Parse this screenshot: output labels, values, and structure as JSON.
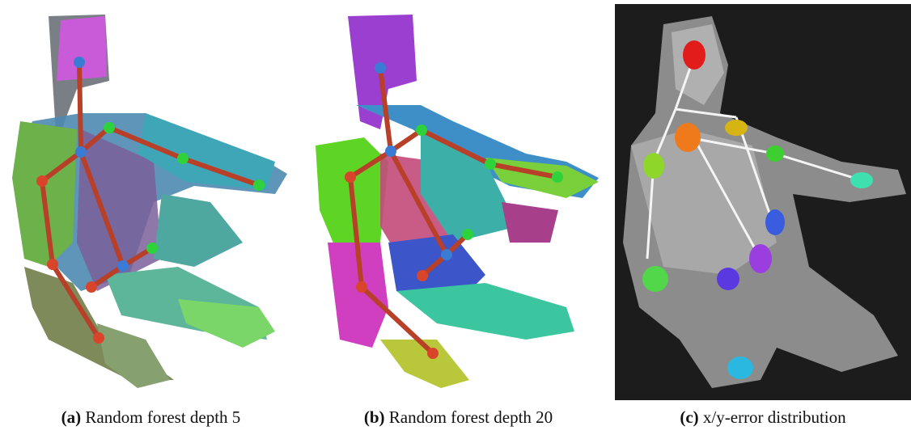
{
  "figure": {
    "panels": [
      {
        "label": "(a)",
        "caption": "Random forest depth 5"
      },
      {
        "label": "(b)",
        "caption": "Random forest depth 20"
      },
      {
        "label": "(c)",
        "caption": "x/y-error distribution"
      }
    ]
  }
}
